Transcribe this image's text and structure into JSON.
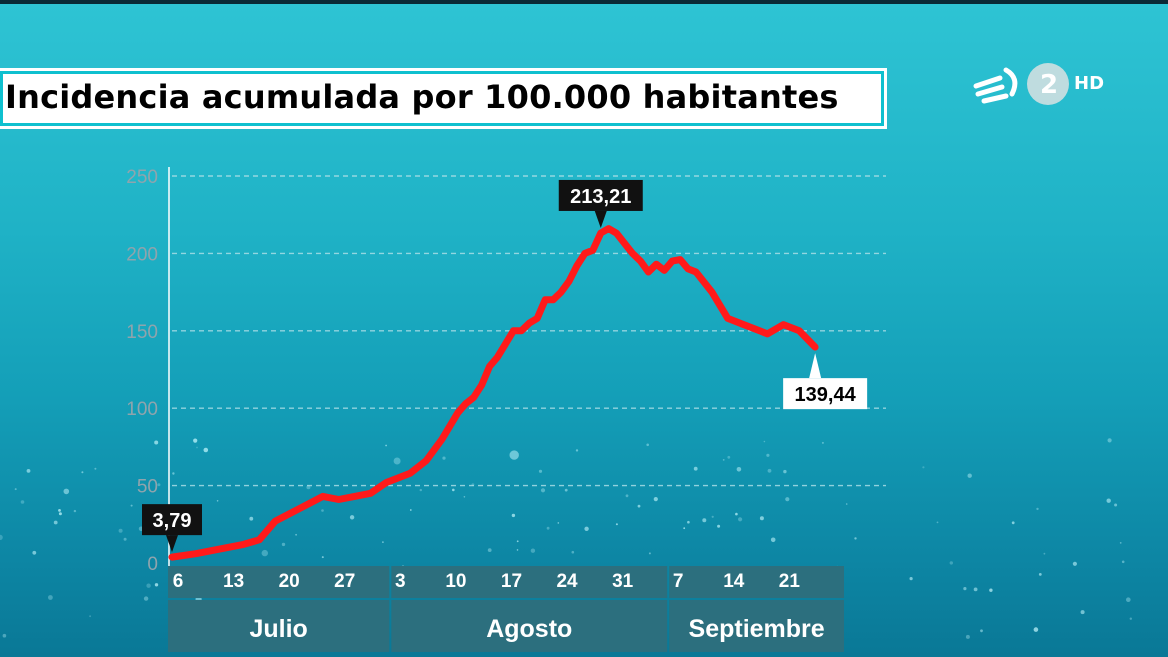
{
  "logo": {
    "channel": "2",
    "quality": "HD",
    "icon": "eitb-icon"
  },
  "chart_data": {
    "type": "line",
    "title": "Incidencia acumulada por 100.000 habitantes",
    "xlabel": "",
    "ylabel": "",
    "ylim": [
      0,
      250
    ],
    "yticks": [
      0,
      50,
      100,
      150,
      200,
      250
    ],
    "grid": true,
    "x_start": "2020-07-06",
    "x_tick_labels": [
      {
        "label": "6",
        "date": "2020-07-06",
        "month": "Julio"
      },
      {
        "label": "13",
        "date": "2020-07-13",
        "month": "Julio"
      },
      {
        "label": "20",
        "date": "2020-07-20",
        "month": "Julio"
      },
      {
        "label": "27",
        "date": "2020-07-27",
        "month": "Julio"
      },
      {
        "label": "3",
        "date": "2020-08-03",
        "month": "Agosto"
      },
      {
        "label": "10",
        "date": "2020-08-10",
        "month": "Agosto"
      },
      {
        "label": "17",
        "date": "2020-08-17",
        "month": "Agosto"
      },
      {
        "label": "24",
        "date": "2020-08-24",
        "month": "Agosto"
      },
      {
        "label": "31",
        "date": "2020-08-31",
        "month": "Agosto"
      },
      {
        "label": "7",
        "date": "2020-09-07",
        "month": "Septiembre"
      },
      {
        "label": "14",
        "date": "2020-09-14",
        "month": "Septiembre"
      },
      {
        "label": "21",
        "date": "2020-09-21",
        "month": "Septiembre"
      }
    ],
    "months": [
      {
        "name": "Julio",
        "start": "2020-07-06",
        "end": "2020-08-02"
      },
      {
        "name": "Agosto",
        "start": "2020-08-03",
        "end": "2020-09-06"
      },
      {
        "name": "Septiembre",
        "start": "2020-09-07",
        "end": "2020-09-28"
      }
    ],
    "series": [
      {
        "name": "",
        "color": "#ff1a1a",
        "points": [
          [
            "2020-07-06",
            3.79
          ],
          [
            "2020-07-09",
            6
          ],
          [
            "2020-07-12",
            9
          ],
          [
            "2020-07-15",
            12
          ],
          [
            "2020-07-17",
            15
          ],
          [
            "2020-07-19",
            27
          ],
          [
            "2020-07-22",
            35
          ],
          [
            "2020-07-25",
            43
          ],
          [
            "2020-07-27",
            41
          ],
          [
            "2020-07-29",
            43
          ],
          [
            "2020-07-31",
            45
          ],
          [
            "2020-08-02",
            52
          ],
          [
            "2020-08-05",
            58
          ],
          [
            "2020-08-07",
            66
          ],
          [
            "2020-08-09",
            80
          ],
          [
            "2020-08-11",
            97
          ],
          [
            "2020-08-12",
            103
          ],
          [
            "2020-08-13",
            107
          ],
          [
            "2020-08-14",
            115
          ],
          [
            "2020-08-15",
            127
          ],
          [
            "2020-08-16",
            133
          ],
          [
            "2020-08-18",
            150
          ],
          [
            "2020-08-19",
            150
          ],
          [
            "2020-08-20",
            155
          ],
          [
            "2020-08-21",
            158
          ],
          [
            "2020-08-22",
            170
          ],
          [
            "2020-08-23",
            170
          ],
          [
            "2020-08-24",
            175
          ],
          [
            "2020-08-25",
            182
          ],
          [
            "2020-08-26",
            192
          ],
          [
            "2020-08-27",
            200
          ],
          [
            "2020-08-28",
            202
          ],
          [
            "2020-08-29",
            213.21
          ],
          [
            "2020-08-30",
            216
          ],
          [
            "2020-08-31",
            213
          ],
          [
            "2020-09-02",
            200
          ],
          [
            "2020-09-03",
            195
          ],
          [
            "2020-09-04",
            188
          ],
          [
            "2020-09-05",
            193
          ],
          [
            "2020-09-06",
            189
          ],
          [
            "2020-09-07",
            195
          ],
          [
            "2020-09-08",
            196
          ],
          [
            "2020-09-09",
            190
          ],
          [
            "2020-09-10",
            188
          ],
          [
            "2020-09-12",
            175
          ],
          [
            "2020-09-14",
            158
          ],
          [
            "2020-09-16",
            154
          ],
          [
            "2020-09-18",
            150
          ],
          [
            "2020-09-19",
            148
          ],
          [
            "2020-09-21",
            154
          ],
          [
            "2020-09-23",
            150
          ],
          [
            "2020-09-25",
            139.44
          ]
        ]
      }
    ],
    "annotations": [
      {
        "label": "3,79",
        "date": "2020-07-06",
        "value": 3.79,
        "style": "dark",
        "position": "above"
      },
      {
        "label": "213,21",
        "date": "2020-08-29",
        "value": 213.21,
        "style": "dark",
        "position": "above"
      },
      {
        "label": "139,44",
        "date": "2020-09-25",
        "value": 139.44,
        "style": "light",
        "position": "below"
      }
    ]
  }
}
